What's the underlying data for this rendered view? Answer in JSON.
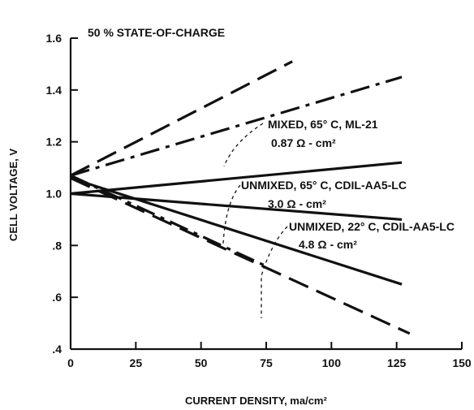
{
  "chart_data": {
    "type": "line",
    "xlabel": "CURRENT DENSITY, ma/cm²",
    "ylabel": "CELL VOLTAGE, V",
    "xlim": [
      0,
      150
    ],
    "ylim": [
      0.4,
      1.6
    ],
    "xticks": [
      0,
      25,
      50,
      75,
      100,
      125,
      150
    ],
    "xtick_labels": [
      "0",
      "25",
      "50",
      "75",
      "100",
      "125",
      "150"
    ],
    "yticks": [
      0.4,
      0.6,
      0.8,
      1.0,
      1.2,
      1.4,
      1.6
    ],
    "ytick_labels": [
      ".4",
      ".6",
      ".8",
      "1.0",
      "1.2",
      "1.4",
      "1.6"
    ],
    "grid": false,
    "annotations": [
      "50 % STATE-OF-CHARGE",
      "MIXED, 65° C, ML-21",
      "0.87 Ω - cm²",
      "UNMIXED, 65° C, CDIL-AA5-LC",
      "3.0 Ω - cm²",
      "UNMIXED, 22° C, CDIL-AA5-LC",
      "4.8 Ω - cm²"
    ],
    "series": [
      {
        "style": "dash",
        "x": [
          0,
          85
        ],
        "y": [
          1.07,
          1.51
        ]
      },
      {
        "style": "dashdot",
        "x": [
          0,
          127
        ],
        "y": [
          1.07,
          1.45
        ]
      },
      {
        "style": "solid",
        "x": [
          0,
          127
        ],
        "y": [
          1.0,
          1.12
        ]
      },
      {
        "style": "solid",
        "x": [
          0,
          127
        ],
        "y": [
          1.0,
          0.9
        ]
      },
      {
        "style": "solid",
        "x": [
          0,
          127
        ],
        "y": [
          1.06,
          0.65
        ]
      },
      {
        "style": "dashdot",
        "x": [
          0,
          75
        ],
        "y": [
          1.07,
          0.72
        ]
      },
      {
        "style": "dash",
        "x": [
          0,
          130
        ],
        "y": [
          1.06,
          0.46
        ]
      }
    ]
  }
}
